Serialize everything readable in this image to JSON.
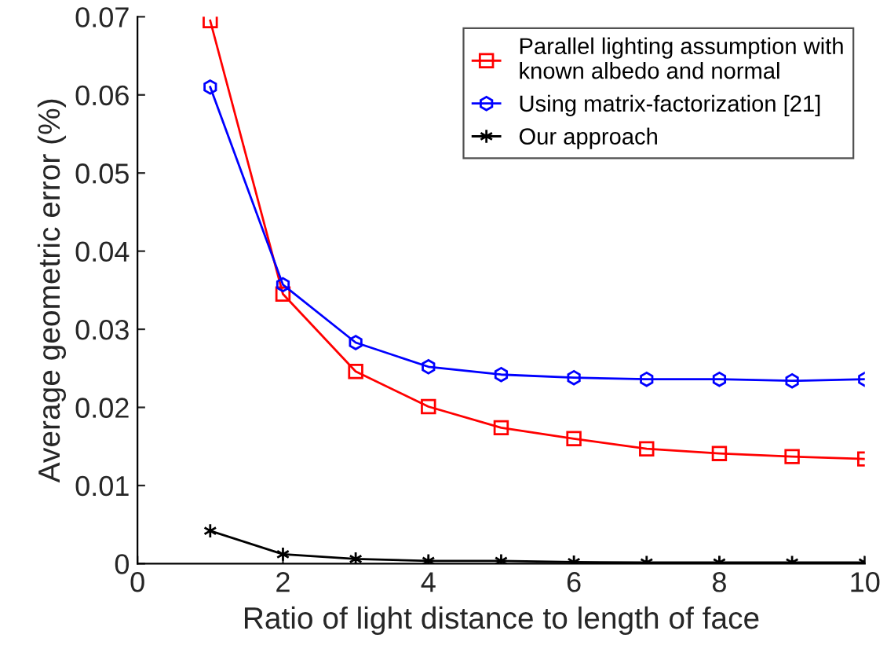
{
  "chart_data": {
    "type": "line",
    "xlabel": "Ratio of light distance to length of face",
    "ylabel": "Average geometric error (%)",
    "x": [
      1,
      2,
      3,
      4,
      5,
      6,
      7,
      8,
      9,
      10
    ],
    "series": [
      {
        "name": "Parallel lighting assumption with\nknown albedo and normal",
        "color": "#ff0000",
        "marker": "square",
        "values": [
          0.0695,
          0.0345,
          0.0246,
          0.0201,
          0.0174,
          0.016,
          0.0147,
          0.0141,
          0.0137,
          0.0134
        ]
      },
      {
        "name": "Using matrix-factorization [21]",
        "color": "#0000ff",
        "marker": "star",
        "values": [
          0.061,
          0.0357,
          0.0283,
          0.0252,
          0.0242,
          0.0238,
          0.0236,
          0.0236,
          0.0234,
          0.0236
        ]
      },
      {
        "name": "Our approach",
        "color": "#000000",
        "marker": "cross",
        "values": [
          0.0042,
          0.0012,
          0.0006,
          0.00035,
          0.00035,
          0.0002,
          0.00015,
          0.00015,
          0.00015,
          0.00015
        ]
      }
    ],
    "xlim": [
      0,
      10
    ],
    "ylim": [
      0,
      0.07
    ],
    "xticks": [
      0,
      2,
      4,
      6,
      8,
      10
    ],
    "yticks": [
      0,
      0.01,
      0.02,
      0.03,
      0.04,
      0.05,
      0.06,
      0.07
    ],
    "grid": false,
    "legend": "top right"
  }
}
